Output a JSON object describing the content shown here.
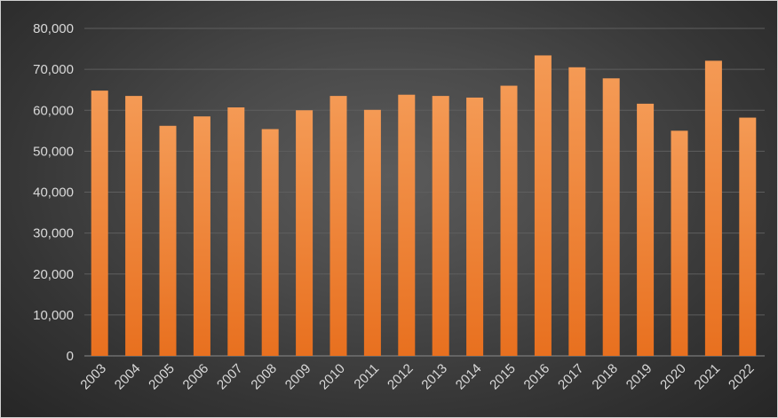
{
  "chart_data": {
    "type": "bar",
    "title": "",
    "xlabel": "",
    "ylabel": "",
    "ylim": [
      0,
      80000
    ],
    "yticks": [
      0,
      10000,
      20000,
      30000,
      40000,
      50000,
      60000,
      70000,
      80000
    ],
    "ytick_labels": [
      "0",
      "10,000",
      "20,000",
      "30,000",
      "40,000",
      "50,000",
      "60,000",
      "70,000",
      "80,000"
    ],
    "grid": true,
    "legend": "none",
    "categories": [
      "2003",
      "2004",
      "2005",
      "2006",
      "2007",
      "2008",
      "2009",
      "2010",
      "2011",
      "2012",
      "2013",
      "2014",
      "2015",
      "2016",
      "2017",
      "2018",
      "2019",
      "2020",
      "2021",
      "2022"
    ],
    "series": [
      {
        "values": [
          64800,
          63500,
          56200,
          58500,
          60700,
          55400,
          60000,
          63500,
          60100,
          63800,
          63500,
          63100,
          66000,
          73400,
          70500,
          67800,
          61600,
          55000,
          72100,
          58200
        ],
        "color": "#f08a3c"
      }
    ]
  }
}
